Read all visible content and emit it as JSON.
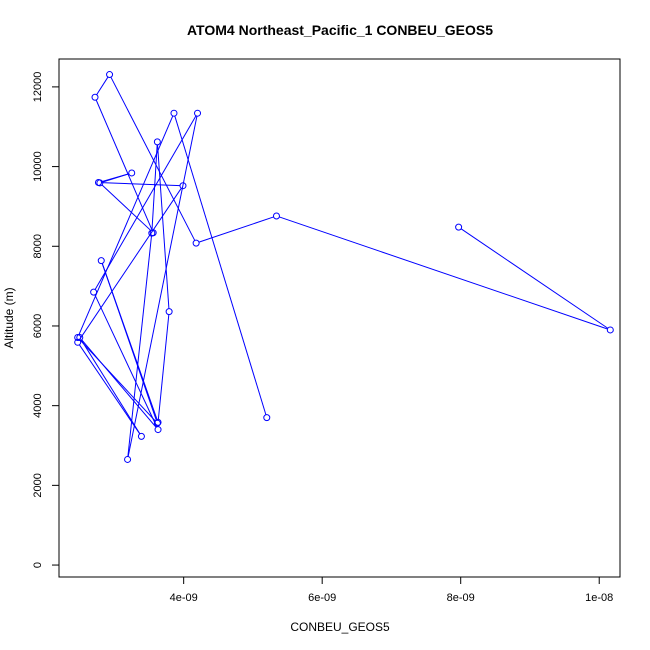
{
  "chart_data": {
    "type": "scatter",
    "mode": "lines+markers",
    "title": "ATOM4 Northeast_Pacific_1 CONBEU_GEOS5",
    "xlabel": "CONBEU_GEOS5",
    "ylabel": "Altitude (m)",
    "xlim": [
      2.2e-09,
      1.03e-08
    ],
    "ylim": [
      -300,
      12700
    ],
    "x_ticks": [
      4e-09,
      6e-09,
      8e-09,
      1e-08
    ],
    "x_tick_labels": [
      "4e-09",
      "6e-09",
      "8e-09",
      "1e-08"
    ],
    "y_ticks": [
      0,
      2000,
      4000,
      6000,
      8000,
      10000,
      12000
    ],
    "y_tick_labels": [
      "0",
      "2000",
      "4000",
      "6000",
      "8000",
      "10000",
      "12000"
    ],
    "grid": false,
    "color": "#0000ff",
    "series": [
      {
        "x": [
          7.97e-09,
          1.016e-08,
          5.34e-09,
          4.18e-09,
          2.93e-09,
          2.72e-09,
          3.56e-09,
          2.79e-09,
          3.25e-09,
          2.77e-09,
          3.99e-09,
          2.47e-09,
          3.39e-09,
          2.5e-09,
          3.63e-09,
          2.7e-09,
          4.2e-09,
          3.19e-09,
          3.54e-09,
          3.62e-09,
          3.79e-09,
          3.63e-09,
          2.81e-09,
          3.62e-09,
          2.47e-09,
          3.86e-09,
          5.2e-09
        ],
        "y": [
          8480,
          5900,
          8760,
          8080,
          12310,
          11740,
          8340,
          9590,
          9840,
          9600,
          9520,
          5590,
          3230,
          5710,
          3400,
          6850,
          11340,
          2650,
          8330,
          10620,
          6360,
          3580,
          7640,
          3560,
          5710,
          11340,
          3700
        ]
      }
    ]
  }
}
